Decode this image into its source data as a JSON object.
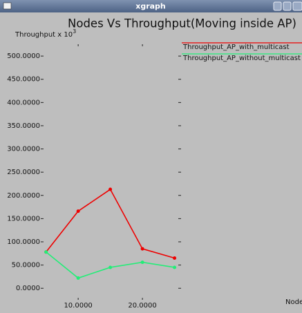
{
  "window_title": "xgraph",
  "chart_data": {
    "type": "line",
    "title": "Nodes Vs Throughput(Moving inside AP)",
    "y_label": "Throughput x 10",
    "y_label_superscript": "3",
    "x_label": "Node",
    "x": [
      5,
      10,
      15,
      20,
      25
    ],
    "series": [
      {
        "name": "Throughput_AP_with_multicast",
        "color": "#ee0000",
        "values": [
          78,
          166,
          213,
          85,
          65
        ]
      },
      {
        "name": "Throughput_AP_without_multicast",
        "color": "#22ee77",
        "values": [
          78,
          22,
          45,
          56,
          45
        ]
      }
    ],
    "xlim": [
      4.5,
      25.8
    ],
    "xticks": [
      {
        "value": 10,
        "label": "10.0000"
      },
      {
        "value": 20,
        "label": "20.0000"
      }
    ],
    "ylim": [
      -22,
      524
    ],
    "yticks": [
      {
        "value": 0,
        "label": "0.0000"
      },
      {
        "value": 50,
        "label": "50.0000"
      },
      {
        "value": 100,
        "label": "100.0000"
      },
      {
        "value": 150,
        "label": "150.0000"
      },
      {
        "value": 200,
        "label": "200.0000"
      },
      {
        "value": 250,
        "label": "250.0000"
      },
      {
        "value": 300,
        "label": "300.0000"
      },
      {
        "value": 350,
        "label": "350.0000"
      },
      {
        "value": 400,
        "label": "400.0000"
      },
      {
        "value": 450,
        "label": "450.0000"
      },
      {
        "value": 500,
        "label": "500.0000"
      }
    ],
    "markers": true
  }
}
